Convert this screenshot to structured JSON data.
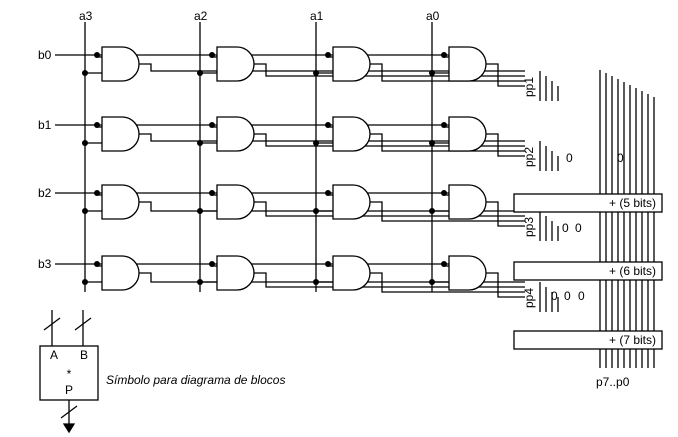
{
  "inputs_a": [
    "a3",
    "a2",
    "a1",
    "a0"
  ],
  "inputs_b": [
    "b0",
    "b1",
    "b2",
    "b3"
  ],
  "partial_products": [
    "pp1",
    "pp2",
    "pp3",
    "pp4"
  ],
  "zero_label": "0",
  "adders": [
    "+ (5 bits)",
    "+ (6 bits)",
    "+ (7 bits)"
  ],
  "output": "p7..p0",
  "block_symbol": {
    "in_left": "A",
    "in_right": "B",
    "operator": "*",
    "out": "P",
    "caption": "Símbolo para diagrama de blocos"
  }
}
